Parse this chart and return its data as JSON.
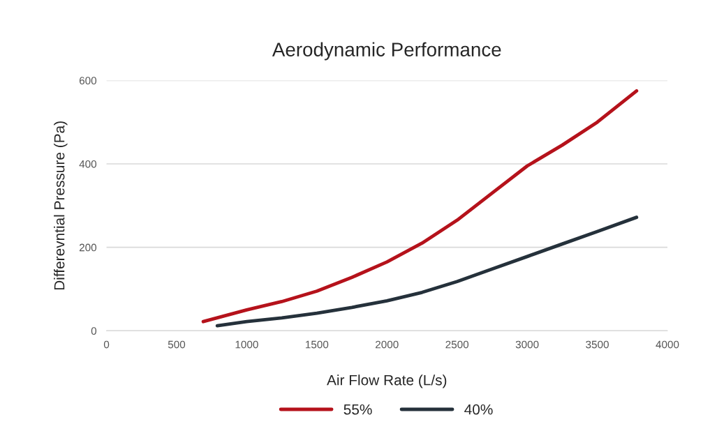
{
  "chart_data": {
    "type": "line",
    "title": "Aerodynamic Performance",
    "xlabel": "Air Flow Rate (L/s)",
    "ylabel": "Differevntial Pressure (Pa)",
    "xlim": [
      0,
      4000
    ],
    "xticks": [
      0,
      500,
      1000,
      1500,
      2000,
      2500,
      3000,
      3500,
      4000
    ],
    "ylim": [
      0,
      600
    ],
    "yticks": [
      0,
      200,
      400,
      600
    ],
    "grid": "y",
    "legend": "bottom",
    "marker": "none",
    "line_style": "solid",
    "series": [
      {
        "name": "55%",
        "color": "#b5121b",
        "x": [
          690,
          1000,
          1250,
          1500,
          1750,
          2000,
          2250,
          2500,
          2750,
          3000,
          3250,
          3500,
          3780
        ],
        "values": [
          22,
          50,
          70,
          95,
          128,
          165,
          210,
          265,
          330,
          395,
          445,
          500,
          575
        ]
      },
      {
        "name": "40%",
        "color": "#25313b",
        "x": [
          790,
          1000,
          1250,
          1500,
          1750,
          2000,
          2250,
          2500,
          2750,
          3000,
          3250,
          3500,
          3780
        ],
        "values": [
          12,
          22,
          31,
          42,
          56,
          72,
          92,
          118,
          148,
          178,
          208,
          238,
          272
        ]
      }
    ]
  }
}
